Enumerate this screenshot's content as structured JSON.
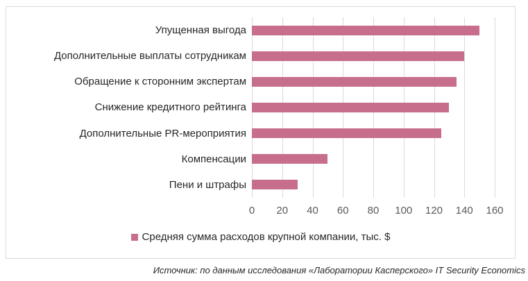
{
  "chart_data": {
    "type": "bar",
    "orientation": "horizontal",
    "categories": [
      "Упущенная выгода",
      "Дополнительные выплаты сотрудникам",
      "Обращение к сторонним экспертам",
      "Снижение кредитного рейтинга",
      "Дополнительные PR-мероприятия",
      "Компенсации",
      "Пени и штрафы"
    ],
    "values": [
      150,
      140,
      135,
      130,
      125,
      50,
      30
    ],
    "series_name": "Средняя сумма расходов крупной компании, тыс. $",
    "x_ticks": [
      0,
      20,
      40,
      60,
      80,
      100,
      120,
      140,
      160
    ],
    "xlim": [
      0,
      160
    ],
    "grid": true,
    "legend_position": "bottom",
    "colors": {
      "bar": "#c76e8c",
      "gridline": "#d9d9d9",
      "frame_border": "#d9d9d9",
      "axis_text": "#595959",
      "category_text": "#262626"
    }
  },
  "legend": {
    "marker_color": "#c76e8c",
    "label": "Средняя сумма расходов крупной компании, тыс. $"
  },
  "source_note": "Источник: по данным исследования «Лаборатории Касперского» IT Security Economics"
}
